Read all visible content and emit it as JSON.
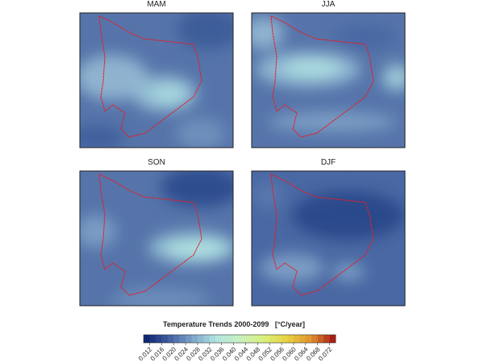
{
  "panels": [
    {
      "title": "MAM"
    },
    {
      "title": "JJA"
    },
    {
      "title": "SON"
    },
    {
      "title": "DJF"
    }
  ],
  "colorbar": {
    "title": "Temperature Trends 2000-2099   [°C/year]",
    "clim": [
      0.01,
      0.074
    ],
    "step": 0.002,
    "palette": [
      "#0a1f6e",
      "#3d5a9e",
      "#7aa0c8",
      "#b0e4e0",
      "#c8f0c0",
      "#d8f07a",
      "#e8d040",
      "#e09030",
      "#a01010"
    ],
    "ticks": [
      0.012,
      0.016,
      {
        "value": 0.02,
        "label": "0.020"
      },
      0.024,
      0.028,
      0.032,
      0.036,
      {
        "value": 0.04,
        "label": "0.040"
      },
      0.044,
      0.048,
      0.052,
      0.056,
      {
        "value": 0.06,
        "label": "0.060"
      },
      0.064,
      0.068,
      0.072
    ]
  }
}
